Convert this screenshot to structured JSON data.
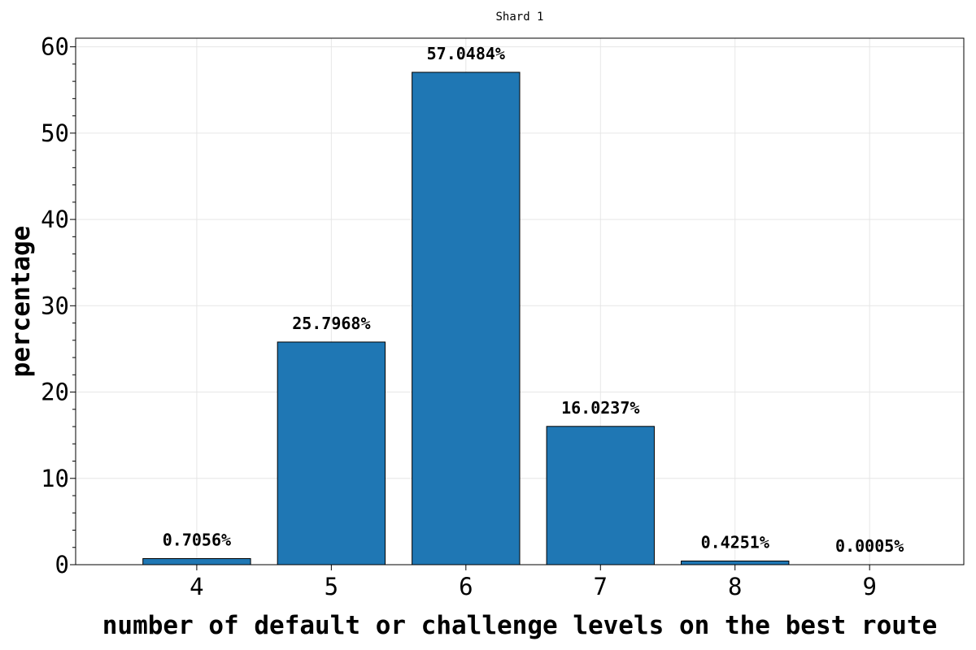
{
  "chart_data": {
    "type": "bar",
    "title": "Shard 1",
    "xlabel": "number of default or challenge levels on the best route",
    "ylabel": "percentage",
    "categories": [
      "4",
      "5",
      "6",
      "7",
      "8",
      "9"
    ],
    "values": [
      0.7056,
      25.7968,
      57.0484,
      16.0237,
      0.4251,
      0.0005
    ],
    "data_labels": [
      "0.7056%",
      "25.7968%",
      "57.0484%",
      "16.0237%",
      "0.4251%",
      "0.0005%"
    ],
    "ylim": [
      0,
      61
    ],
    "yticks": [
      0,
      10,
      20,
      30,
      40,
      50,
      60
    ],
    "ytick_labels": [
      "0",
      "10",
      "20",
      "30",
      "40",
      "50",
      "60"
    ],
    "grid": true,
    "bar_color": "#1f77b4",
    "edge_color": "#000000"
  }
}
